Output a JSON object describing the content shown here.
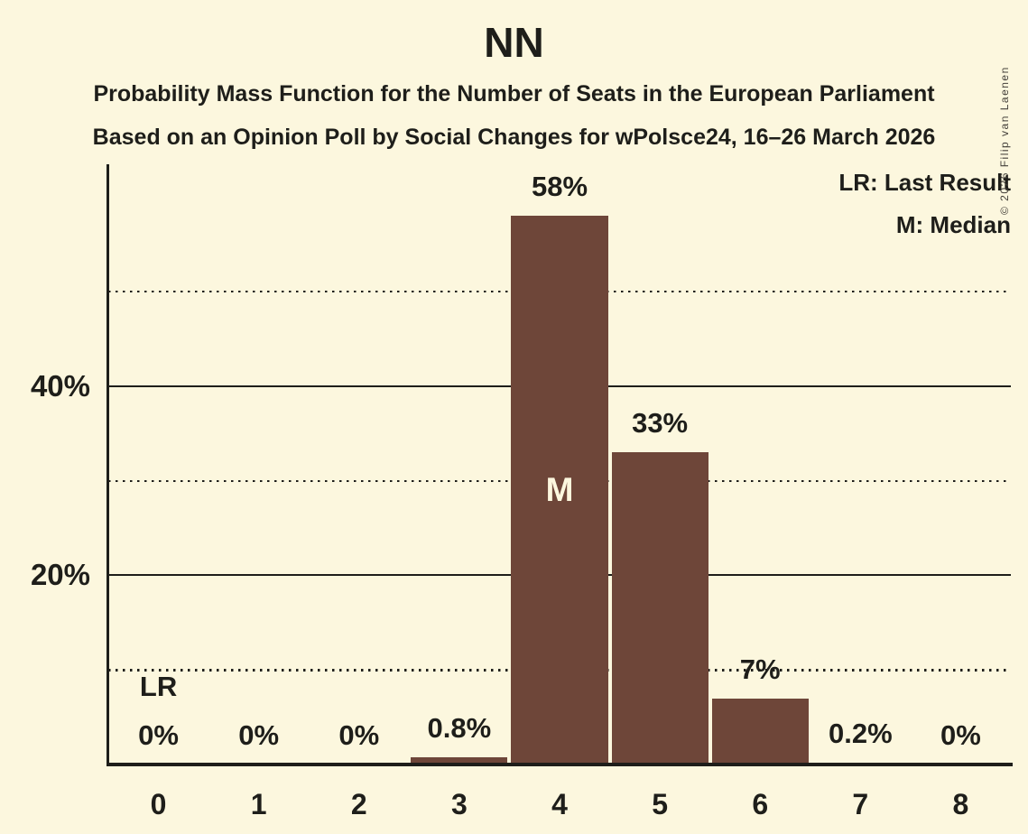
{
  "header": {
    "title": "NN",
    "subtitle_line1": "Probability Mass Function for the Number of Seats in the European Parliament",
    "subtitle_line2": "Based on an Opinion Poll by Social Changes for wPolsce24, 16–26 March 2026"
  },
  "legend": {
    "last_result": "LR: Last Result",
    "median": "M: Median"
  },
  "copyright_notice": "© 2026 Filip van Laenen",
  "chart_data": {
    "type": "bar",
    "title": "NN",
    "categories": [
      "0",
      "1",
      "2",
      "3",
      "4",
      "5",
      "6",
      "7",
      "8"
    ],
    "values": [
      0,
      0,
      0,
      0.8,
      58,
      33,
      7,
      0.2,
      0
    ],
    "bar_labels": [
      "0%",
      "0%",
      "0%",
      "0.8%",
      "58%",
      "33%",
      "7%",
      "0.2%",
      "0%"
    ],
    "xlabel": "",
    "ylabel": "",
    "ylim": [
      0,
      63
    ],
    "y_ticks": [
      {
        "value": 20,
        "label": "20%"
      },
      {
        "value": 40,
        "label": "40%"
      }
    ],
    "solid_gridlines": [
      20,
      40
    ],
    "dotted_gridlines": [
      10,
      30,
      50
    ],
    "grid": true,
    "legend_position": "top-right",
    "annotations": {
      "median": {
        "category_index": 4,
        "label": "M"
      },
      "last_result": {
        "category_index": 0,
        "label": "LR"
      }
    },
    "bar_color": "#6E4639",
    "background_color": "#FCF7DE",
    "text_color": "#1E1E1A"
  }
}
